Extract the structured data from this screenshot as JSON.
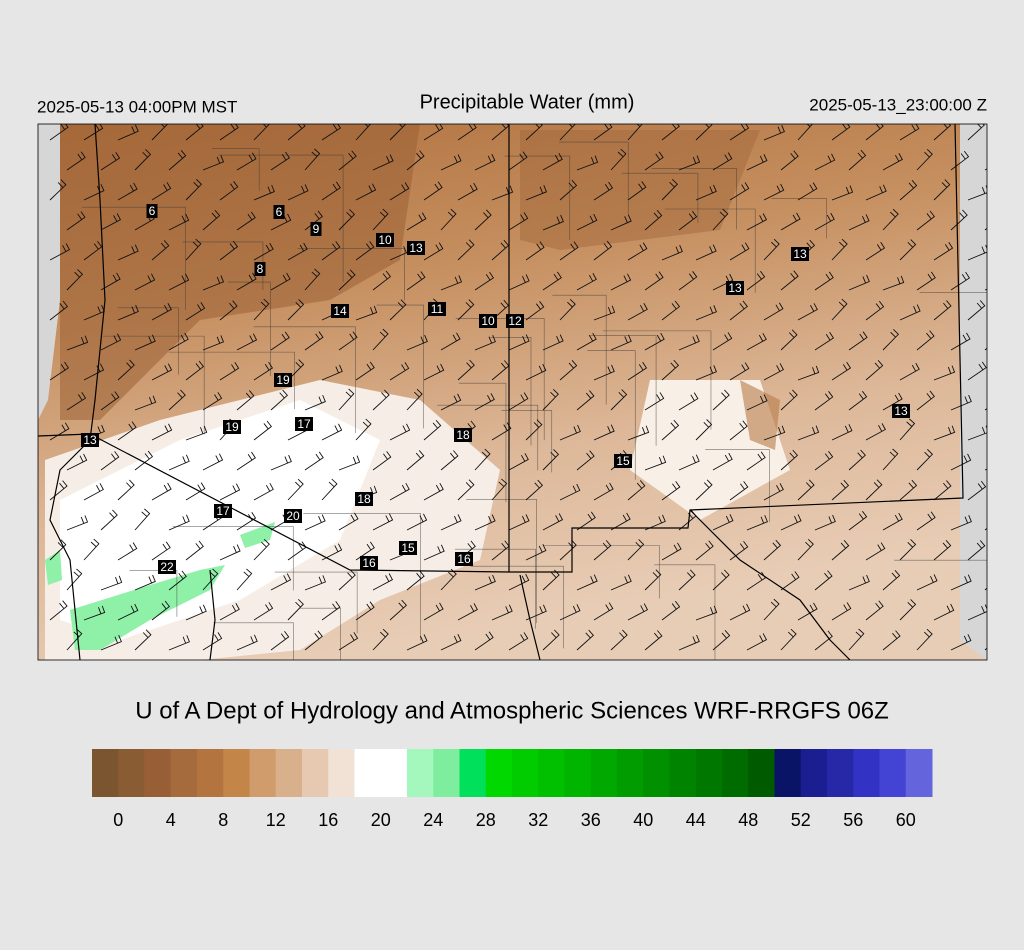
{
  "header": {
    "valid_local": "2025-05-13 04:00PM MST",
    "title": "Precipitable Water (mm)",
    "valid_utc": "2025-05-13_23:00:00 Z"
  },
  "stations": [
    6,
    6,
    9,
    10,
    13,
    13,
    8,
    13,
    14,
    11,
    10,
    12,
    19,
    19,
    17,
    13,
    13,
    18,
    15,
    18,
    17,
    20,
    15,
    16,
    16,
    22
  ],
  "credit": "U of A Dept of Hydrology and Atmospheric Sciences WRF-RRGFS 06Z",
  "colorbar": {
    "colors": [
      "#7b5430",
      "#8a5c34",
      "#985f36",
      "#a66b3c",
      "#b47440",
      "#c48548",
      "#d09c6c",
      "#d9b08c",
      "#e6c9b0",
      "#f1e2d5",
      "#ffffff",
      "#ffffff",
      "#a5f8bd",
      "#7eee9e",
      "#00e05a",
      "#00d800",
      "#00cc00",
      "#00c000",
      "#00b400",
      "#00a800",
      "#009c00",
      "#009000",
      "#008400",
      "#007800",
      "#006c00",
      "#005a00",
      "#0a1466",
      "#1a1e90",
      "#2628a8",
      "#3232c4",
      "#4444d4",
      "#6464dc"
    ],
    "ticks": [
      0,
      4,
      8,
      12,
      16,
      20,
      24,
      28,
      32,
      36,
      40,
      44,
      48,
      52,
      56,
      60
    ]
  }
}
